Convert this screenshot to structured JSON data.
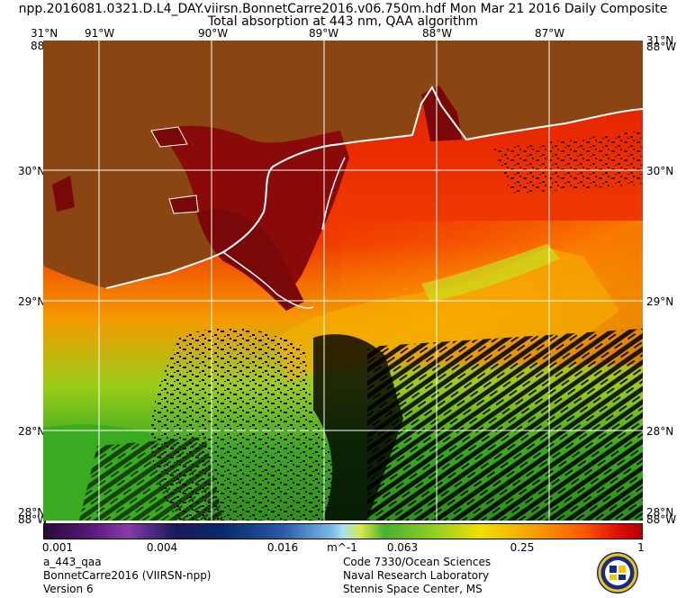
{
  "header": {
    "line1": "npp.2016081.0321.D.L4_DAY.viirsn.BonnetCarre2016.v06.750m.hdf    Mon Mar 21 2016 Daily Composite",
    "line2": "Total absorption at 443 nm, QAA algorithm"
  },
  "map": {
    "top_lon_labels": [
      "31°N",
      "91°W",
      "90°W",
      "89°W",
      "88°W",
      "87°W",
      "31°N"
    ],
    "top_corner_overlap": [
      "88°W",
      "88°W"
    ],
    "left_lat_labels": [
      "30°N",
      "29°N",
      "28°N"
    ],
    "right_lat_labels": [
      "30°N",
      "29°N",
      "28°N"
    ],
    "bottom_corner_left": [
      "28°N",
      "88°W"
    ],
    "bottom_corner_right": [
      "28°N",
      "88°W"
    ],
    "colors": {
      "land": "#8b4513",
      "coast": "#ffffff",
      "grid": "#ffffff",
      "no_data": "#000000"
    }
  },
  "colorbar": {
    "ticks": [
      "0.001",
      "0.004",
      "0.016",
      "m^-1",
      "0.063",
      "0.25",
      "1"
    ],
    "scale": "log"
  },
  "footer": {
    "left": [
      "a_443_qaa",
      "BonnetCarre2016 (VIIRSN-npp)",
      "Version 6"
    ],
    "right": [
      "Code 7330/Ocean Sciences",
      "Naval Research Laboratory",
      "Stennis Space Center, MS"
    ]
  },
  "seal_icon": "nrl-seal-icon"
}
